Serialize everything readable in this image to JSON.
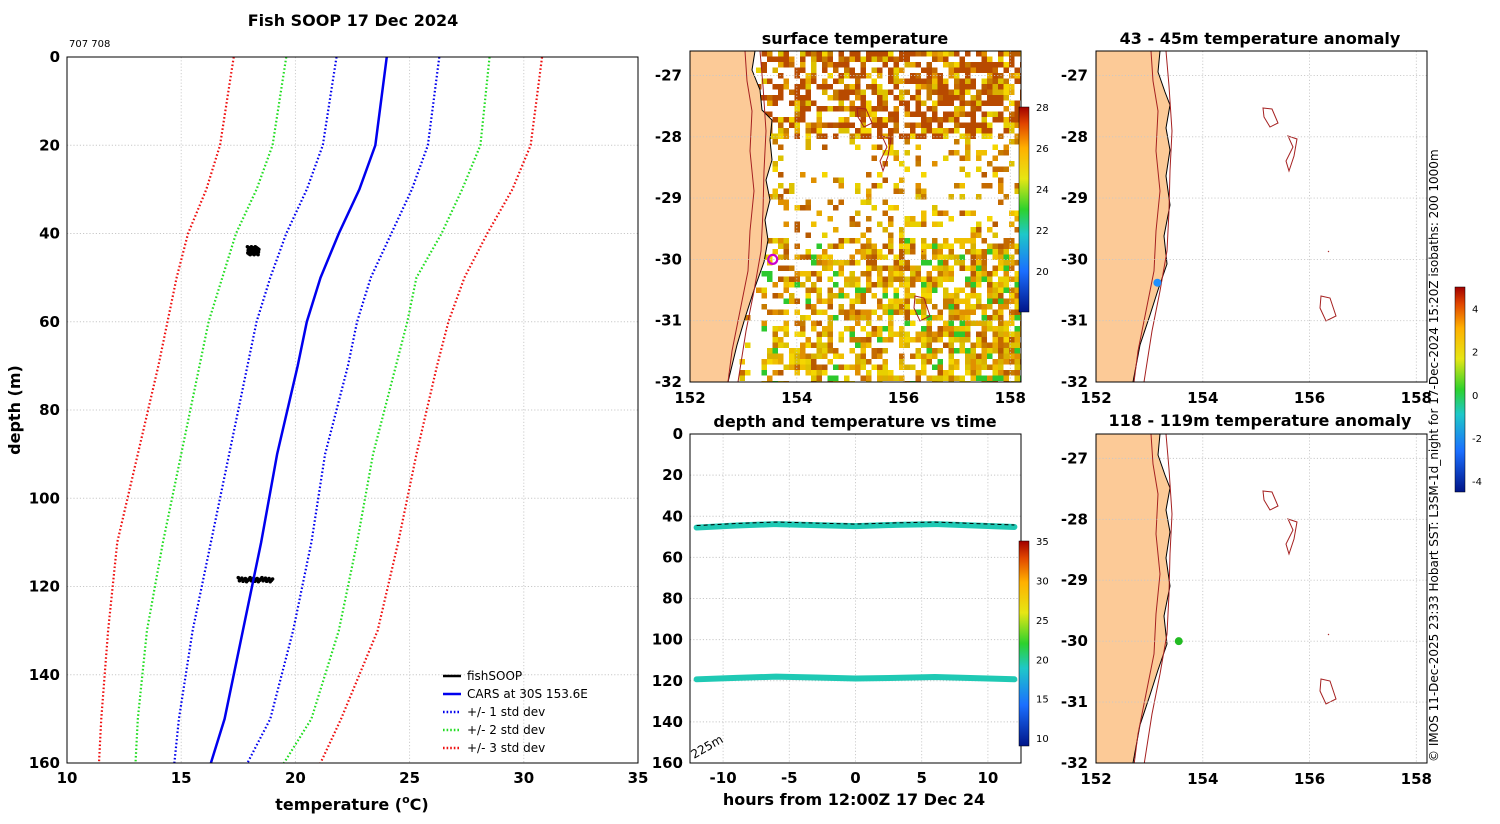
{
  "page": {
    "credit": "© IMOS 11-Dec-2025 23:33 Hobart SST: L3SM-1d_night for 17-Dec-2024 15:20Z isobaths: 200 1000m"
  },
  "chart_data": [
    {
      "id": "profile",
      "type": "line",
      "title": "Fish SOOP 17 Dec 2024",
      "subtitle": "707 708",
      "xlabel": "temperature (",
      "xlabel_sup": "o",
      "xlabel_end": "C)",
      "ylabel": "depth (m)",
      "xlim": [
        10,
        35
      ],
      "ylim": [
        0,
        160
      ],
      "y_inverted": true,
      "xticks": [
        10,
        15,
        20,
        25,
        30,
        35
      ],
      "yticks": [
        0,
        20,
        40,
        60,
        80,
        100,
        120,
        140,
        160
      ],
      "grid": true,
      "legend_position": "bottom-right",
      "series": [
        {
          "name": "fishSOOP",
          "color": "#000000",
          "style": "scatter-cluster",
          "clusters": [
            {
              "depth": [
                43,
                45
              ],
              "temp": [
                17.9,
                18.4
              ]
            },
            {
              "depth": [
                118,
                119
              ],
              "temp": [
                17.5,
                19.0
              ]
            }
          ]
        },
        {
          "name": "CARS at 30S 153.6E",
          "color": "#0000ee",
          "style": "solid",
          "depth": [
            0,
            20,
            30,
            40,
            50,
            60,
            70,
            90,
            110,
            130,
            150,
            160
          ],
          "temp": [
            24.0,
            23.5,
            22.8,
            21.9,
            21.1,
            20.5,
            20.1,
            19.2,
            18.5,
            17.7,
            16.9,
            16.3
          ]
        },
        {
          "name": "+/- 1 std dev",
          "color": "#0000ee",
          "style": "dotted",
          "lower_depth": [
            0,
            20,
            30,
            40,
            50,
            60,
            70,
            90,
            110,
            130,
            150,
            160
          ],
          "lower_temp": [
            21.8,
            21.2,
            20.5,
            19.6,
            18.9,
            18.3,
            17.9,
            17.1,
            16.3,
            15.5,
            14.9,
            14.7
          ],
          "upper_depth": [
            0,
            20,
            30,
            40,
            50,
            60,
            70,
            90,
            110,
            130,
            150,
            160
          ],
          "upper_temp": [
            26.3,
            25.8,
            25.1,
            24.2,
            23.3,
            22.7,
            22.3,
            21.3,
            20.7,
            19.9,
            18.9,
            17.9
          ]
        },
        {
          "name": "+/- 2 std dev",
          "color": "#22dd22",
          "style": "dotted",
          "lower_depth": [
            0,
            20,
            30,
            40,
            50,
            60,
            70,
            90,
            110,
            130,
            150,
            160
          ],
          "lower_temp": [
            19.6,
            19.0,
            18.3,
            17.4,
            16.8,
            16.2,
            15.8,
            15.0,
            14.2,
            13.5,
            13.1,
            13.0
          ],
          "upper_depth": [
            0,
            20,
            30,
            40,
            50,
            60,
            70,
            90,
            110,
            130,
            150,
            160
          ],
          "upper_temp": [
            28.5,
            28.1,
            27.3,
            26.4,
            25.3,
            24.9,
            24.4,
            23.4,
            22.7,
            21.9,
            20.7,
            19.5
          ]
        },
        {
          "name": "+/- 3 std dev",
          "color": "#ee1111",
          "style": "dotted",
          "lower_depth": [
            0,
            20,
            30,
            40,
            50,
            60,
            70,
            90,
            110,
            130,
            150,
            160
          ],
          "lower_temp": [
            17.3,
            16.7,
            16.1,
            15.3,
            14.8,
            14.4,
            14.0,
            13.1,
            12.2,
            11.8,
            11.5,
            11.4
          ],
          "upper_depth": [
            0,
            20,
            30,
            40,
            50,
            60,
            70,
            90,
            110,
            130,
            150,
            160
          ],
          "upper_temp": [
            30.8,
            30.3,
            29.5,
            28.4,
            27.4,
            26.7,
            26.2,
            25.3,
            24.5,
            23.6,
            22.0,
            21.1
          ]
        }
      ]
    },
    {
      "id": "sst",
      "type": "heatmap",
      "title": "surface temperature",
      "xlim": [
        152,
        158.2
      ],
      "ylim": [
        -32,
        -26.6
      ],
      "xticks": [
        152,
        154,
        156,
        158
      ],
      "yticks": [
        -27,
        -28,
        -29,
        -30,
        -31,
        -32
      ],
      "colorbar": {
        "min": 18,
        "max": 28,
        "ticks": [
          20,
          22,
          24,
          26,
          28
        ]
      },
      "marker": {
        "lon": 153.55,
        "lat": -30.0,
        "color": "#cc00cc"
      }
    },
    {
      "id": "anom1",
      "type": "heatmap",
      "title": "43 - 45m temperature anomaly",
      "xlim": [
        152,
        158.2
      ],
      "ylim": [
        -32,
        -26.6
      ],
      "xticks": [
        152,
        154,
        156,
        158
      ],
      "yticks": [
        -27,
        -28,
        -29,
        -30,
        -31,
        -32
      ],
      "marker": {
        "lon": 153.15,
        "lat": -30.38,
        "color": "#1e90ff"
      }
    },
    {
      "id": "anom2",
      "type": "heatmap",
      "title": "118 - 119m temperature anomaly",
      "xlim": [
        152,
        158.2
      ],
      "ylim": [
        -32,
        -26.6
      ],
      "xticks": [
        152,
        154,
        156,
        158
      ],
      "yticks": [
        -27,
        -28,
        -29,
        -30,
        -31,
        -32
      ],
      "marker": {
        "lon": 153.55,
        "lat": -30.0,
        "color": "#22bb22"
      }
    },
    {
      "id": "anomaly_colorbar",
      "type": "colorbar",
      "min": -4.5,
      "max": 5,
      "ticks": [
        4,
        2,
        0,
        -2,
        -4
      ]
    },
    {
      "id": "timeseries",
      "type": "scatter",
      "title": "depth and temperature vs time",
      "xlabel": "hours from 12:00Z 17 Dec 24",
      "xlim": [
        -12.5,
        12.5
      ],
      "ylim": [
        0,
        160
      ],
      "y_inverted": true,
      "xticks": [
        -10,
        -5,
        0,
        5,
        10
      ],
      "yticks": [
        0,
        20,
        40,
        60,
        80,
        100,
        120,
        140,
        160
      ],
      "bottom_depth_label": "225m",
      "colorbar": {
        "min": 9,
        "max": 35,
        "ticks": [
          10,
          15,
          20,
          25,
          30,
          35
        ]
      },
      "series": [
        {
          "name": "upper",
          "color": "#1fc9b4",
          "hours": [
            -12,
            -9,
            -6,
            -3,
            0,
            3,
            6,
            9,
            12
          ],
          "depth": [
            45.5,
            44.5,
            43.8,
            44.3,
            44.8,
            44.2,
            43.8,
            44.5,
            45.2
          ]
        },
        {
          "name": "lower",
          "color": "#1fc9b4",
          "hours": [
            -12,
            -9,
            -6,
            -3,
            0,
            3,
            6,
            9,
            12
          ],
          "depth": [
            119.3,
            118.6,
            118.0,
            118.4,
            118.9,
            118.6,
            118.2,
            118.7,
            119.3
          ]
        }
      ]
    }
  ]
}
